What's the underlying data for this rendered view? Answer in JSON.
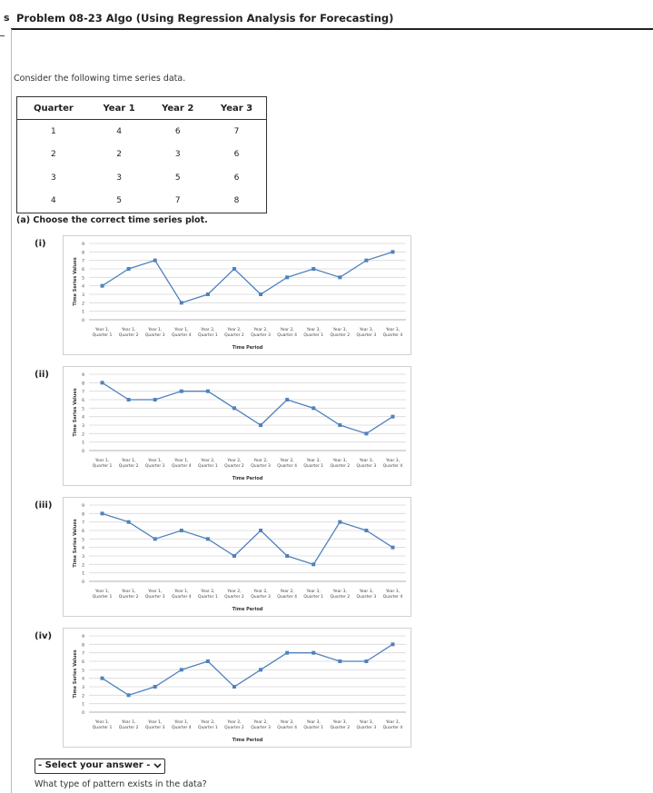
{
  "header": {
    "left_stub": "s",
    "title": "Problem 08-23 Algo (Using Regression Analysis for Forecasting)"
  },
  "intro": "Consider the following time series data.",
  "table": {
    "headers": [
      "Quarter",
      "Year 1",
      "Year 2",
      "Year 3"
    ],
    "rows": [
      [
        "1",
        "4",
        "6",
        "7"
      ],
      [
        "2",
        "2",
        "3",
        "6"
      ],
      [
        "3",
        "3",
        "5",
        "6"
      ],
      [
        "4",
        "5",
        "7",
        "8"
      ]
    ]
  },
  "part_a": "(a) Choose the correct time series plot.",
  "option_labels": [
    "(i)",
    "(ii)",
    "(iii)",
    "(iv)"
  ],
  "chart_data": [
    {
      "type": "line",
      "ylabel": "Time Series Values",
      "xlabel": "Time Period",
      "ylim": [
        0,
        9
      ],
      "yticks": [
        "0",
        "1",
        "2",
        "3",
        "4",
        "5",
        "6",
        "7",
        "8",
        "9"
      ],
      "categories": [
        [
          "Year 1,",
          "Quarter 1"
        ],
        [
          "Year 1,",
          "Quarter 2"
        ],
        [
          "Year 1,",
          "Quarter 3"
        ],
        [
          "Year 1,",
          "Quarter 4"
        ],
        [
          "Year 2,",
          "Quarter 1"
        ],
        [
          "Year 2,",
          "Quarter 2"
        ],
        [
          "Year 2,",
          "Quarter 3"
        ],
        [
          "Year 2,",
          "Quarter 4"
        ],
        [
          "Year 3,",
          "Quarter 1"
        ],
        [
          "Year 3,",
          "Quarter 2"
        ],
        [
          "Year 3,",
          "Quarter 3"
        ],
        [
          "Year 3,",
          "Quarter 4"
        ]
      ],
      "values": [
        4,
        6,
        7,
        2,
        3,
        6,
        3,
        5,
        6,
        5,
        7,
        8
      ]
    },
    {
      "type": "line",
      "ylabel": "Time Series Values",
      "xlabel": "Time Period",
      "ylim": [
        0,
        9
      ],
      "yticks": [
        "0",
        "1",
        "2",
        "3",
        "4",
        "5",
        "6",
        "7",
        "8",
        "9"
      ],
      "categories": [
        [
          "Year 1,",
          "Quarter 1"
        ],
        [
          "Year 1,",
          "Quarter 2"
        ],
        [
          "Year 1,",
          "Quarter 3"
        ],
        [
          "Year 1,",
          "Quarter 4"
        ],
        [
          "Year 2,",
          "Quarter 1"
        ],
        [
          "Year 2,",
          "Quarter 2"
        ],
        [
          "Year 2,",
          "Quarter 3"
        ],
        [
          "Year 2,",
          "Quarter 4"
        ],
        [
          "Year 3,",
          "Quarter 1"
        ],
        [
          "Year 3,",
          "Quarter 2"
        ],
        [
          "Year 3,",
          "Quarter 3"
        ],
        [
          "Year 3,",
          "Quarter 4"
        ]
      ],
      "values": [
        8,
        6,
        6,
        7,
        7,
        5,
        3,
        6,
        5,
        3,
        2,
        4
      ]
    },
    {
      "type": "line",
      "ylabel": "Time Series Values",
      "xlabel": "Time Period",
      "ylim": [
        0,
        9
      ],
      "yticks": [
        "0",
        "1",
        "2",
        "3",
        "4",
        "5",
        "6",
        "7",
        "8",
        "9"
      ],
      "categories": [
        [
          "Year 1,",
          "Quarter 1"
        ],
        [
          "Year 1,",
          "Quarter 2"
        ],
        [
          "Year 1,",
          "Quarter 3"
        ],
        [
          "Year 1,",
          "Quarter 4"
        ],
        [
          "Year 2,",
          "Quarter 1"
        ],
        [
          "Year 2,",
          "Quarter 2"
        ],
        [
          "Year 2,",
          "Quarter 3"
        ],
        [
          "Year 2,",
          "Quarter 4"
        ],
        [
          "Year 3,",
          "Quarter 1"
        ],
        [
          "Year 3,",
          "Quarter 2"
        ],
        [
          "Year 3,",
          "Quarter 3"
        ],
        [
          "Year 3,",
          "Quarter 4"
        ]
      ],
      "values": [
        8,
        7,
        5,
        6,
        5,
        3,
        6,
        3,
        2,
        7,
        6,
        4
      ]
    },
    {
      "type": "line",
      "ylabel": "Time Series Values",
      "xlabel": "Time Period",
      "ylim": [
        0,
        9
      ],
      "yticks": [
        "0",
        "1",
        "2",
        "3",
        "4",
        "5",
        "6",
        "7",
        "8",
        "9"
      ],
      "categories": [
        [
          "Year 1,",
          "Quarter 1"
        ],
        [
          "Year 1,",
          "Quarter 2"
        ],
        [
          "Year 1,",
          "Quarter 3"
        ],
        [
          "Year 1,",
          "Quarter 4"
        ],
        [
          "Year 2,",
          "Quarter 1"
        ],
        [
          "Year 2,",
          "Quarter 2"
        ],
        [
          "Year 2,",
          "Quarter 3"
        ],
        [
          "Year 2,",
          "Quarter 4"
        ],
        [
          "Year 3,",
          "Quarter 1"
        ],
        [
          "Year 3,",
          "Quarter 2"
        ],
        [
          "Year 3,",
          "Quarter 3"
        ],
        [
          "Year 3,",
          "Quarter 4"
        ]
      ],
      "values": [
        4,
        2,
        3,
        5,
        6,
        3,
        5,
        7,
        7,
        6,
        6,
        8
      ]
    }
  ],
  "colors": {
    "series": "#4F81BD",
    "grid": "#d9d9d9"
  },
  "answer_select": {
    "value": "- Select your answer -",
    "icon": "chevron-down-icon"
  },
  "question": "What type of pattern exists in the data?"
}
